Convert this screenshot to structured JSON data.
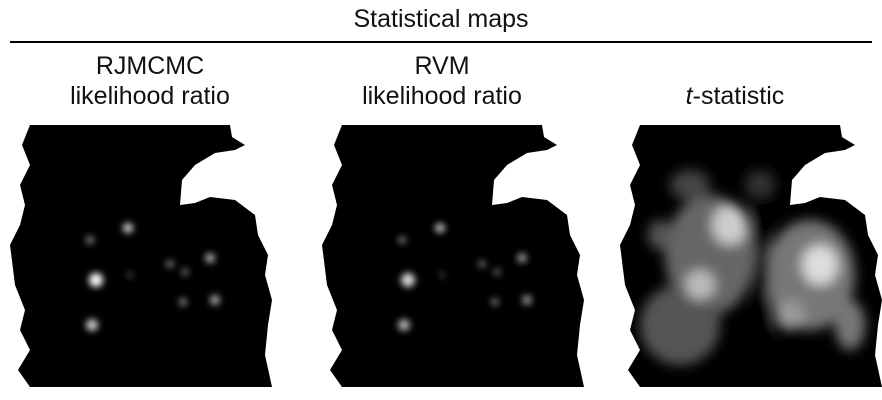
{
  "header": {
    "title": "Statistical maps"
  },
  "panels": [
    {
      "label": [
        "RJMCMC",
        "likelihood ratio"
      ]
    },
    {
      "label": [
        "RVM",
        "likelihood ratio"
      ]
    },
    {
      "label_italic": "t",
      "label_rest": "-statistic"
    }
  ]
}
